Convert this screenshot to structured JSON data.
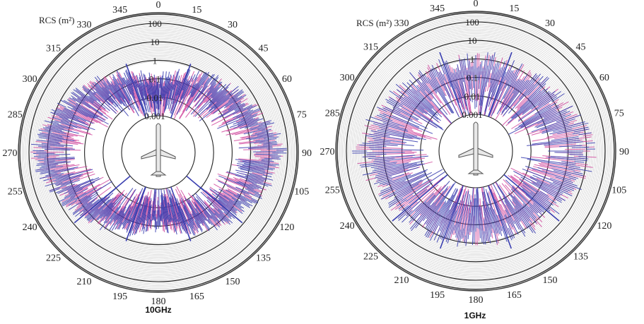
{
  "chart_data": [
    {
      "type": "polar-scatter",
      "caption": "10GHz",
      "ylabel": "RCS (m²)",
      "radial_scale": "log",
      "radial_range": [
        0.001,
        100
      ],
      "radial_ticks": [
        "100",
        "10",
        "1",
        "0.1",
        "0.01",
        "0.001"
      ],
      "angle_ticks": [
        "0",
        "15",
        "30",
        "45",
        "60",
        "75",
        "90",
        "105",
        "120",
        "135",
        "150",
        "165",
        "180",
        "195",
        "210",
        "225",
        "240",
        "255",
        "270",
        "285",
        "300",
        "315",
        "330",
        "345"
      ],
      "series_colors": [
        "#3a3fb0",
        "#d0459c"
      ],
      "profile": [
        {
          "angle": 0,
          "rcs": 0.05
        },
        {
          "angle": 30,
          "rcs": 0.3
        },
        {
          "angle": 60,
          "rcs": 2
        },
        {
          "angle": 90,
          "rcs": 30
        },
        {
          "angle": 120,
          "rcs": 2
        },
        {
          "angle": 150,
          "rcs": 0.3
        },
        {
          "angle": 180,
          "rcs": 0.05
        }
      ]
    },
    {
      "type": "polar-scatter",
      "caption": "1GHz",
      "ylabel": "RCS (m²)",
      "radial_scale": "log",
      "radial_range": [
        0.001,
        100
      ],
      "radial_ticks": [
        "100",
        "10",
        "1",
        "0.1",
        "0.01",
        "0.001"
      ],
      "angle_ticks": [
        "0",
        "15",
        "30",
        "45",
        "60",
        "75",
        "90",
        "105",
        "120",
        "135",
        "150",
        "165",
        "180",
        "195",
        "210",
        "225",
        "240",
        "255",
        "270",
        "285",
        "300",
        "315",
        "330",
        "345"
      ],
      "series_colors": [
        "#3a3fb0",
        "#d0459c"
      ],
      "profile": [
        {
          "angle": 0,
          "rcs": 0.5
        },
        {
          "angle": 30,
          "rcs": 0.5
        },
        {
          "angle": 60,
          "rcs": 1
        },
        {
          "angle": 90,
          "rcs": 10
        },
        {
          "angle": 120,
          "rcs": 1
        },
        {
          "angle": 150,
          "rcs": 0.5
        },
        {
          "angle": 180,
          "rcs": 0.3
        }
      ]
    }
  ]
}
